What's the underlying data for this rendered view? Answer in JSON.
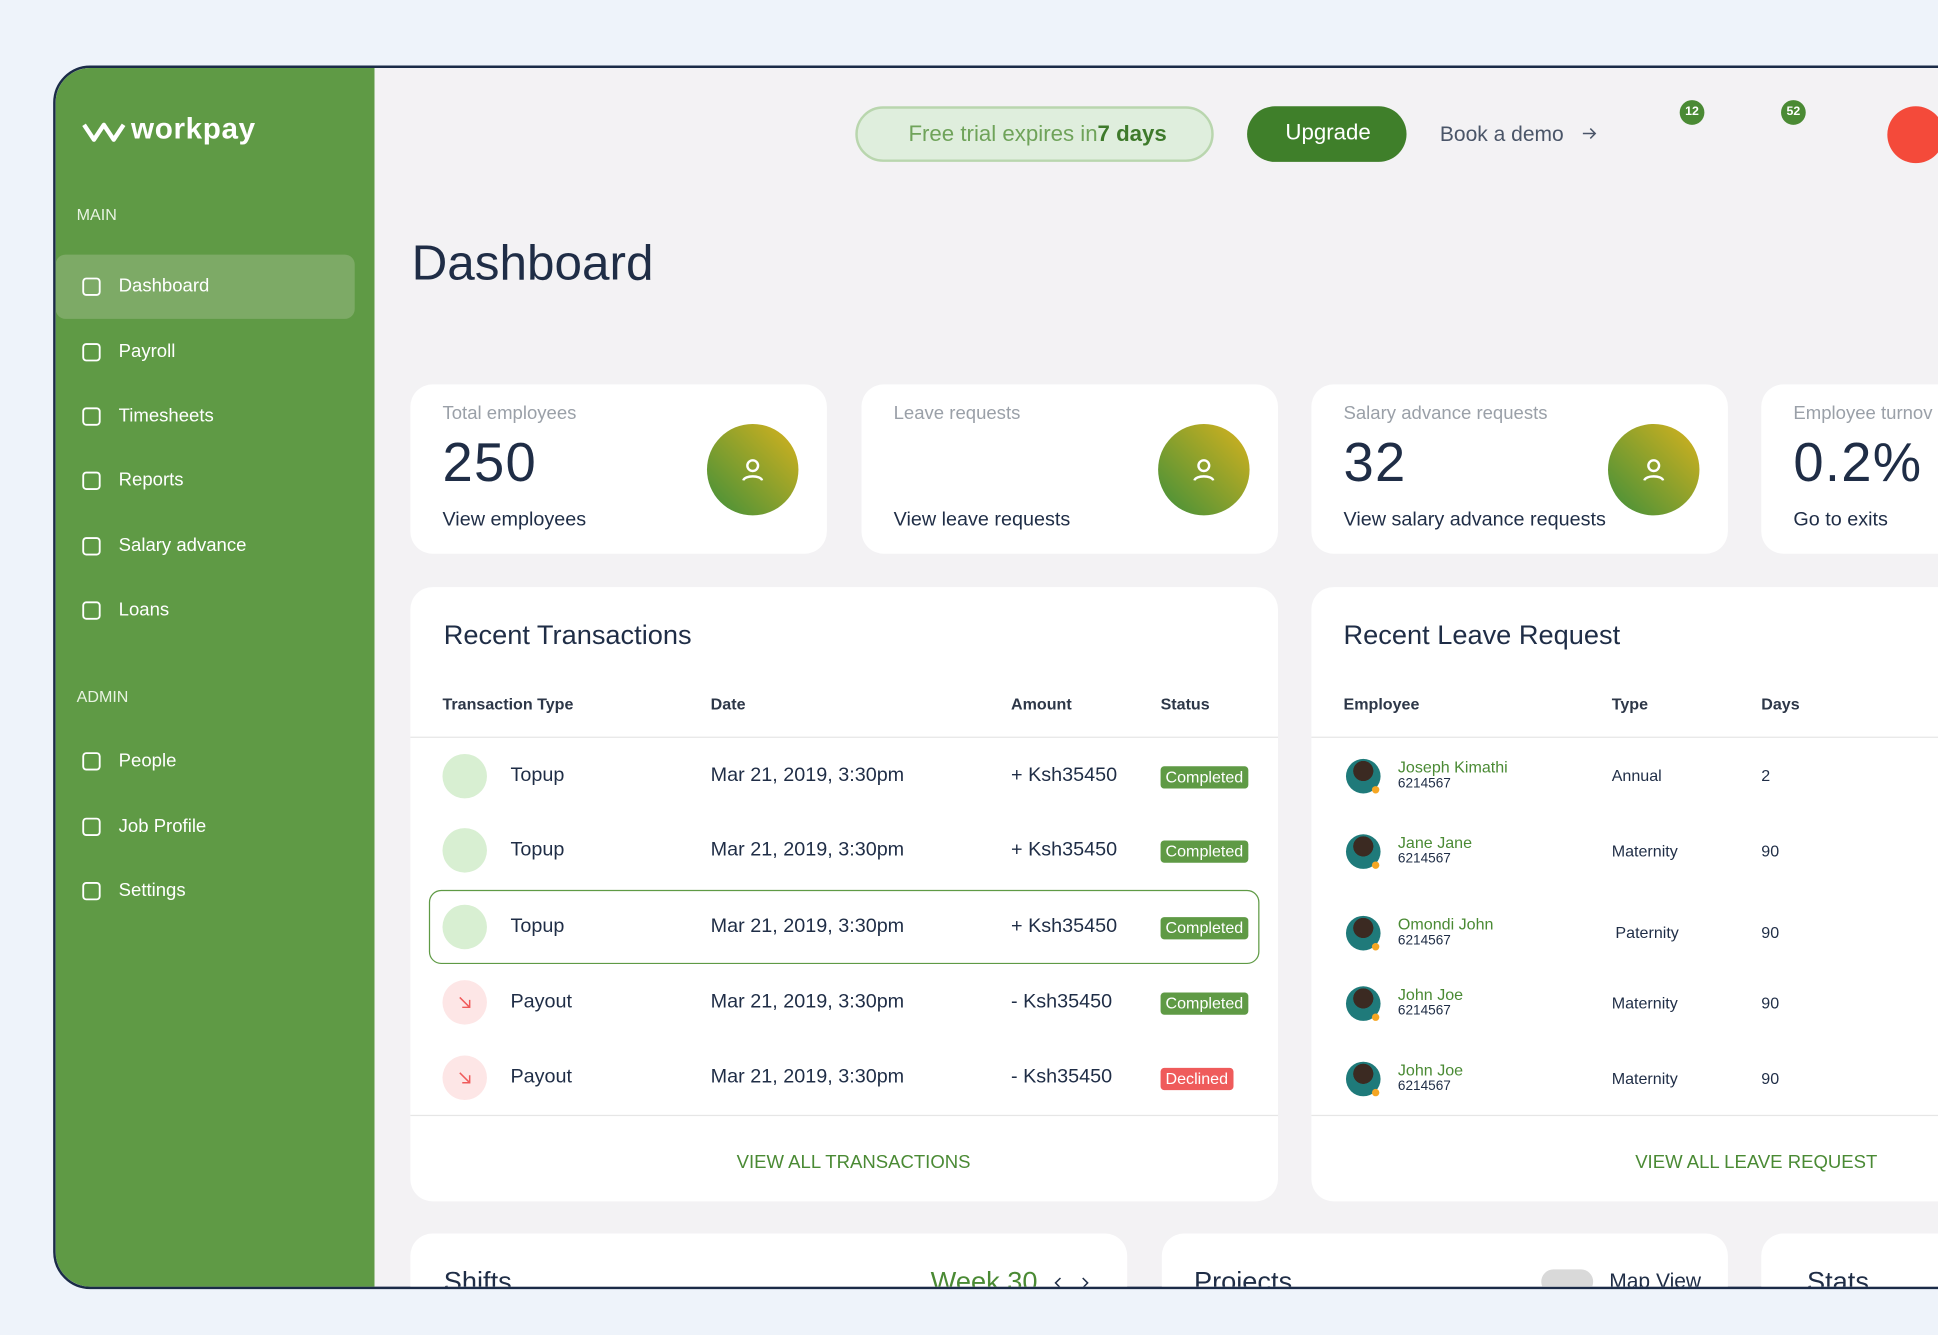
{
  "sidebar": {
    "logo": "workpay",
    "sections": [
      {
        "title": "MAIN",
        "items": [
          "Dashboard",
          "Payroll",
          "Timesheets",
          "Reports",
          "Salary advance",
          "Loans"
        ]
      },
      {
        "title": "ADMIN",
        "items": [
          "People",
          "Job Profile",
          "Settings"
        ]
      }
    ]
  },
  "topbar": {
    "trial_text": "Free trial expires in",
    "trial_days": "7 days",
    "upgrade": "Upgrade",
    "demo": "Book a demo",
    "badges": [
      12,
      52
    ]
  },
  "header": {
    "title": "Dashboard"
  },
  "stats": [
    {
      "label": "Total employees",
      "value": 250,
      "link": "View employees"
    },
    {
      "label": "Leave requests",
      "link": "View leave requests"
    },
    {
      "label": "Salary advance requests",
      "value": 32,
      "link": "View salary advance requests"
    },
    {
      "label": "Employee turnov",
      "value": "0.2%",
      "link": "Go to exits"
    }
  ],
  "transactions": {
    "title": "Recent Transactions",
    "columns": [
      "Transaction Type",
      "Date",
      "Amount",
      "Status"
    ],
    "rows": [
      [
        "Topup",
        "Mar 21, 2019, 3:30pm",
        "+ Ksh35450",
        "Completed"
      ],
      [
        "Topup",
        "Mar 21, 2019, 3:30pm",
        "+ Ksh35450",
        "Completed"
      ],
      [
        "Topup",
        "Mar 21, 2019, 3:30pm",
        "+ Ksh35450",
        "Completed"
      ],
      [
        "Payout",
        "Mar 21, 2019, 3:30pm",
        "- Ksh35450",
        "Completed"
      ],
      [
        "Payout",
        "Mar 21, 2019, 3:30pm",
        "- Ksh35450",
        "Declined"
      ]
    ],
    "footer": "VIEW ALL TRANSACTIONS"
  },
  "leave": {
    "title": "Recent Leave Request",
    "columns": [
      "Employee",
      "Type",
      "Days"
    ],
    "rows": [
      [
        "Joseph Kimathi",
        "6214567",
        "Annual",
        2
      ],
      [
        "Jane Jane",
        "6214567",
        "Maternity",
        90
      ],
      [
        "Omondi John",
        "6214567",
        "Paternity",
        90
      ],
      [
        "John Joe",
        "6214567",
        "Maternity",
        90
      ],
      [
        "John Joe",
        "6214567",
        "Maternity",
        90
      ]
    ],
    "footer": "VIEW ALL LEAVE REQUEST"
  },
  "bottom": {
    "shifts": "Shifts",
    "week": "Week 30",
    "projects": "Projects",
    "map_view": "Map View",
    "stats": "Stats"
  }
}
